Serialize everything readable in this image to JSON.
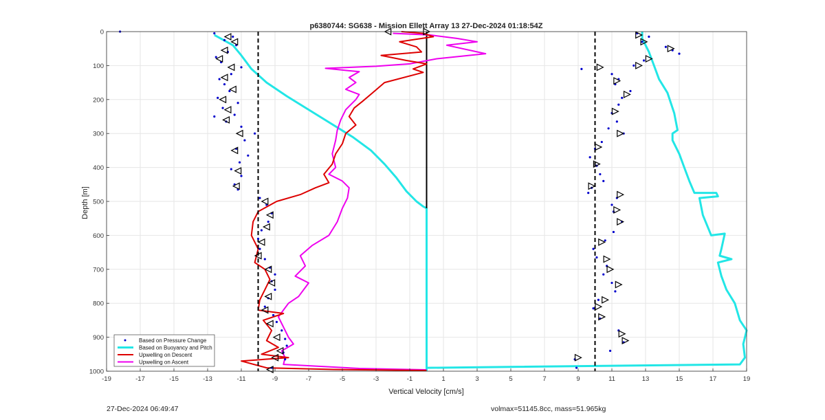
{
  "chart_data": {
    "type": "scatter",
    "title": "p6380744: SG638 - Mission Ellett Array 13 27-Dec-2024 01:18:54Z",
    "xlabel": "Vertical Velocity [cm/s]",
    "ylabel": "Depth [m]",
    "xlim": [
      -19,
      19
    ],
    "ylim": [
      0,
      1000
    ],
    "y_reversed": true,
    "grid": true,
    "xticks": [
      -19,
      -17,
      -15,
      -13,
      -11,
      -9,
      -7,
      -5,
      -3,
      -1,
      1,
      3,
      5,
      7,
      9,
      11,
      13,
      15,
      17,
      19
    ],
    "yticks": [
      0,
      100,
      200,
      300,
      400,
      500,
      600,
      700,
      800,
      900,
      1000
    ],
    "legend_position": "bottom-left",
    "colors": {
      "pressure": "#0000cc",
      "buoyancy": "#22e6e6",
      "descent": "#dd0000",
      "ascent": "#ee00ee",
      "reference": "#000000"
    },
    "series": [
      {
        "name": "Based on Pressure Change",
        "style": "dots",
        "descent_points": [
          [
            -18.2,
            0
          ],
          [
            -12.6,
            5
          ],
          [
            -11.5,
            15
          ],
          [
            -12.0,
            25
          ],
          [
            -11.3,
            40
          ],
          [
            -11.8,
            60
          ],
          [
            -12.5,
            75
          ],
          [
            -12.2,
            90
          ],
          [
            -11.0,
            105
          ],
          [
            -11.6,
            125
          ],
          [
            -12.3,
            140
          ],
          [
            -12.0,
            155
          ],
          [
            -11.7,
            175
          ],
          [
            -12.4,
            195
          ],
          [
            -11.2,
            210
          ],
          [
            -12.1,
            225
          ],
          [
            -11.4,
            245
          ],
          [
            -12.6,
            250
          ],
          [
            -11.9,
            265
          ],
          [
            -11.0,
            280
          ],
          [
            -10.2,
            300
          ],
          [
            -10.8,
            320
          ],
          [
            -11.3,
            345
          ],
          [
            -10.6,
            365
          ],
          [
            -11.1,
            385
          ],
          [
            -11.6,
            405
          ],
          [
            -11.0,
            425
          ],
          [
            -11.4,
            450
          ],
          [
            -11.2,
            465
          ],
          [
            -9.9,
            490
          ],
          [
            -9.5,
            510
          ],
          [
            -9.2,
            535
          ],
          [
            -9.4,
            560
          ],
          [
            -9.8,
            585
          ],
          [
            -10.0,
            610
          ],
          [
            -9.9,
            640
          ],
          [
            -9.6,
            670
          ],
          [
            -9.3,
            695
          ],
          [
            -9.0,
            715
          ],
          [
            -9.2,
            735
          ],
          [
            -9.0,
            760
          ],
          [
            -9.4,
            785
          ],
          [
            -9.6,
            810
          ],
          [
            -9.1,
            835
          ],
          [
            -8.9,
            855
          ],
          [
            -8.6,
            880
          ],
          [
            -8.4,
            905
          ],
          [
            -8.3,
            925
          ],
          [
            -8.5,
            945
          ],
          [
            -8.4,
            965
          ],
          [
            -9.2,
            990
          ]
        ],
        "ascent_points": [
          [
            12.5,
            5
          ],
          [
            13.2,
            15
          ],
          [
            12.8,
            30
          ],
          [
            14.2,
            45
          ],
          [
            14.6,
            55
          ],
          [
            15.0,
            65
          ],
          [
            12.9,
            85
          ],
          [
            12.3,
            100
          ],
          [
            9.2,
            110
          ],
          [
            11.0,
            125
          ],
          [
            11.4,
            140
          ],
          [
            11.2,
            155
          ],
          [
            12.1,
            175
          ],
          [
            11.6,
            195
          ],
          [
            11.4,
            215
          ],
          [
            11.0,
            240
          ],
          [
            11.3,
            265
          ],
          [
            10.8,
            285
          ],
          [
            11.7,
            300
          ],
          [
            10.4,
            325
          ],
          [
            10.0,
            345
          ],
          [
            9.7,
            370
          ],
          [
            10.1,
            395
          ],
          [
            10.3,
            420
          ],
          [
            10.5,
            440
          ],
          [
            9.8,
            460
          ],
          [
            9.6,
            475
          ],
          [
            11.3,
            490
          ],
          [
            11.0,
            510
          ],
          [
            11.1,
            530
          ],
          [
            11.6,
            560
          ],
          [
            11.1,
            590
          ],
          [
            10.6,
            615
          ],
          [
            9.9,
            640
          ],
          [
            10.1,
            665
          ],
          [
            10.7,
            690
          ],
          [
            10.5,
            715
          ],
          [
            11.0,
            740
          ],
          [
            11.2,
            765
          ],
          [
            10.2,
            790
          ],
          [
            9.9,
            815
          ],
          [
            10.3,
            845
          ],
          [
            11.4,
            880
          ],
          [
            11.7,
            915
          ],
          [
            10.9,
            940
          ],
          [
            8.8,
            965
          ],
          [
            8.9,
            990
          ]
        ]
      },
      {
        "name": "Based on Buoyancy and Pitch",
        "style": "line",
        "descent_points": [
          [
            -12.6,
            10
          ],
          [
            -11.5,
            40
          ],
          [
            -11.0,
            70
          ],
          [
            -10.4,
            110
          ],
          [
            -9.5,
            150
          ],
          [
            -8.3,
            190
          ],
          [
            -7.0,
            230
          ],
          [
            -5.7,
            270
          ],
          [
            -4.4,
            310
          ],
          [
            -3.3,
            350
          ],
          [
            -2.5,
            390
          ],
          [
            -1.8,
            430
          ],
          [
            -1.2,
            470
          ],
          [
            -0.6,
            500
          ],
          [
            -0.2,
            515
          ],
          [
            0,
            520
          ],
          [
            0,
            1000
          ]
        ],
        "ascent_points": [
          [
            12.8,
            0
          ],
          [
            12.8,
            20
          ],
          [
            13.2,
            60
          ],
          [
            13.5,
            100
          ],
          [
            13.8,
            140
          ],
          [
            14.3,
            180
          ],
          [
            14.7,
            240
          ],
          [
            14.9,
            290
          ],
          [
            14.6,
            300
          ],
          [
            14.6,
            320
          ],
          [
            15.0,
            360
          ],
          [
            15.3,
            400
          ],
          [
            15.6,
            440
          ],
          [
            15.9,
            475
          ],
          [
            17.2,
            475
          ],
          [
            17.3,
            485
          ],
          [
            16.2,
            490
          ],
          [
            16.4,
            540
          ],
          [
            16.9,
            600
          ],
          [
            17.7,
            595
          ],
          [
            17.5,
            640
          ],
          [
            17.4,
            660
          ],
          [
            18.1,
            670
          ],
          [
            17.3,
            680
          ],
          [
            17.5,
            720
          ],
          [
            17.8,
            760
          ],
          [
            18.3,
            800
          ],
          [
            18.6,
            850
          ],
          [
            19.0,
            880
          ],
          [
            18.8,
            920
          ],
          [
            18.9,
            960
          ],
          [
            18.6,
            980
          ],
          [
            0,
            990
          ],
          [
            0,
            1000
          ]
        ]
      },
      {
        "name": "Upwelling on Descent",
        "style": "line",
        "points": [
          [
            -1.5,
            0
          ],
          [
            -0.2,
            5
          ],
          [
            0.4,
            15
          ],
          [
            -1.6,
            30
          ],
          [
            -0.6,
            45
          ],
          [
            -0.3,
            60
          ],
          [
            -2.7,
            70
          ],
          [
            -1.2,
            85
          ],
          [
            0,
            95
          ],
          [
            -0.8,
            110
          ],
          [
            -0.2,
            120
          ],
          [
            -2.5,
            150
          ],
          [
            -3.2,
            180
          ],
          [
            -3.8,
            205
          ],
          [
            -4.3,
            225
          ],
          [
            -4.6,
            250
          ],
          [
            -4.2,
            275
          ],
          [
            -4.8,
            300
          ],
          [
            -5.0,
            330
          ],
          [
            -5.4,
            360
          ],
          [
            -5.6,
            390
          ],
          [
            -6.1,
            420
          ],
          [
            -5.8,
            445
          ],
          [
            -6.6,
            460
          ],
          [
            -7.5,
            480
          ],
          [
            -8.9,
            500
          ],
          [
            -10.0,
            530
          ],
          [
            -10.3,
            560
          ],
          [
            -10.4,
            600
          ],
          [
            -10.0,
            640
          ],
          [
            -10.2,
            680
          ],
          [
            -9.6,
            700
          ],
          [
            -9.3,
            730
          ],
          [
            -9.6,
            760
          ],
          [
            -9.9,
            790
          ],
          [
            -10.0,
            820
          ],
          [
            -8.5,
            830
          ],
          [
            -9.7,
            850
          ],
          [
            -9.2,
            880
          ],
          [
            -9.5,
            910
          ],
          [
            -8.8,
            930
          ],
          [
            -9.8,
            950
          ],
          [
            -8.2,
            960
          ],
          [
            -11.0,
            970
          ],
          [
            -9.5,
            990
          ],
          [
            -5.5,
            995
          ],
          [
            0,
            998
          ]
        ]
      },
      {
        "name": "Upwelling on Ascent",
        "style": "line",
        "points": [
          [
            -2.0,
            5
          ],
          [
            0.2,
            10
          ],
          [
            1.8,
            20
          ],
          [
            3.0,
            30
          ],
          [
            1.2,
            40
          ],
          [
            3.5,
            65
          ],
          [
            0.6,
            80
          ],
          [
            -1.0,
            95
          ],
          [
            -3.0,
            102
          ],
          [
            -6.0,
            108
          ],
          [
            -4.0,
            118
          ],
          [
            -4.6,
            135
          ],
          [
            -4.2,
            150
          ],
          [
            -4.8,
            170
          ],
          [
            -4.0,
            185
          ],
          [
            -4.2,
            200
          ],
          [
            -4.8,
            230
          ],
          [
            -5.1,
            260
          ],
          [
            -5.3,
            290
          ],
          [
            -5.4,
            320
          ],
          [
            -5.6,
            360
          ],
          [
            -5.4,
            400
          ],
          [
            -5.8,
            420
          ],
          [
            -5.0,
            440
          ],
          [
            -4.6,
            460
          ],
          [
            -4.7,
            490
          ],
          [
            -5.0,
            520
          ],
          [
            -5.3,
            560
          ],
          [
            -5.8,
            600
          ],
          [
            -6.8,
            630
          ],
          [
            -7.5,
            660
          ],
          [
            -7.2,
            690
          ],
          [
            -7.8,
            720
          ],
          [
            -7.0,
            740
          ],
          [
            -7.6,
            780
          ],
          [
            -8.2,
            800
          ],
          [
            -8.8,
            840
          ],
          [
            -8.5,
            870
          ],
          [
            -8.2,
            900
          ],
          [
            -7.9,
            920
          ],
          [
            -8.6,
            940
          ],
          [
            -8.4,
            960
          ],
          [
            -8.5,
            980
          ],
          [
            -4.0,
            992
          ],
          [
            0,
            996
          ]
        ]
      },
      {
        "name": "reference",
        "style": "dashed-vertical",
        "x": [
          -10,
          10
        ]
      }
    ],
    "descent_triangles": [
      [
        -11.8,
        15
      ],
      [
        -11.4,
        30
      ],
      [
        -12.0,
        55
      ],
      [
        -12.3,
        80
      ],
      [
        -11.6,
        105
      ],
      [
        -12.0,
        135
      ],
      [
        -11.5,
        170
      ],
      [
        -12.1,
        200
      ],
      [
        -11.8,
        230
      ],
      [
        -11.9,
        260
      ],
      [
        -11.1,
        300
      ],
      [
        -11.4,
        350
      ],
      [
        -11.2,
        410
      ],
      [
        -11.3,
        455
      ],
      [
        -9.6,
        500
      ],
      [
        -9.3,
        540
      ],
      [
        -9.5,
        575
      ],
      [
        -9.8,
        620
      ],
      [
        -10.0,
        660
      ],
      [
        -9.4,
        700
      ],
      [
        -9.2,
        740
      ],
      [
        -9.4,
        780
      ],
      [
        -9.6,
        820
      ],
      [
        -9.3,
        860
      ],
      [
        -8.9,
        900
      ],
      [
        -8.7,
        940
      ],
      [
        -9.0,
        960
      ],
      [
        -9.3,
        995
      ],
      [
        -2.3,
        0
      ]
    ],
    "ascent_triangles": [
      [
        12.6,
        10
      ],
      [
        12.9,
        30
      ],
      [
        14.5,
        50
      ],
      [
        13.2,
        80
      ],
      [
        12.6,
        100
      ],
      [
        10.3,
        105
      ],
      [
        11.3,
        145
      ],
      [
        11.9,
        185
      ],
      [
        11.2,
        235
      ],
      [
        11.5,
        300
      ],
      [
        10.2,
        340
      ],
      [
        10.1,
        390
      ],
      [
        9.8,
        455
      ],
      [
        11.5,
        480
      ],
      [
        11.3,
        525
      ],
      [
        11.5,
        560
      ],
      [
        10.4,
        620
      ],
      [
        10.7,
        670
      ],
      [
        10.9,
        700
      ],
      [
        11.4,
        745
      ],
      [
        10.6,
        790
      ],
      [
        10.2,
        810
      ],
      [
        10.4,
        840
      ],
      [
        11.6,
        890
      ],
      [
        11.8,
        910
      ],
      [
        9.0,
        960
      ],
      [
        0,
        0
      ]
    ],
    "legend": [
      {
        "label": "Based on Pressure Change",
        "key": "pressure"
      },
      {
        "label": "Based on Buoyancy and Pitch",
        "key": "buoyancy"
      },
      {
        "label": "Upwelling on Descent",
        "key": "descent"
      },
      {
        "label": "Upwelling on Ascent",
        "key": "ascent"
      }
    ]
  },
  "footer": {
    "left": "27-Dec-2024 06:49:47",
    "right": "volmax=51145.8cc, mass=51.965kg"
  }
}
